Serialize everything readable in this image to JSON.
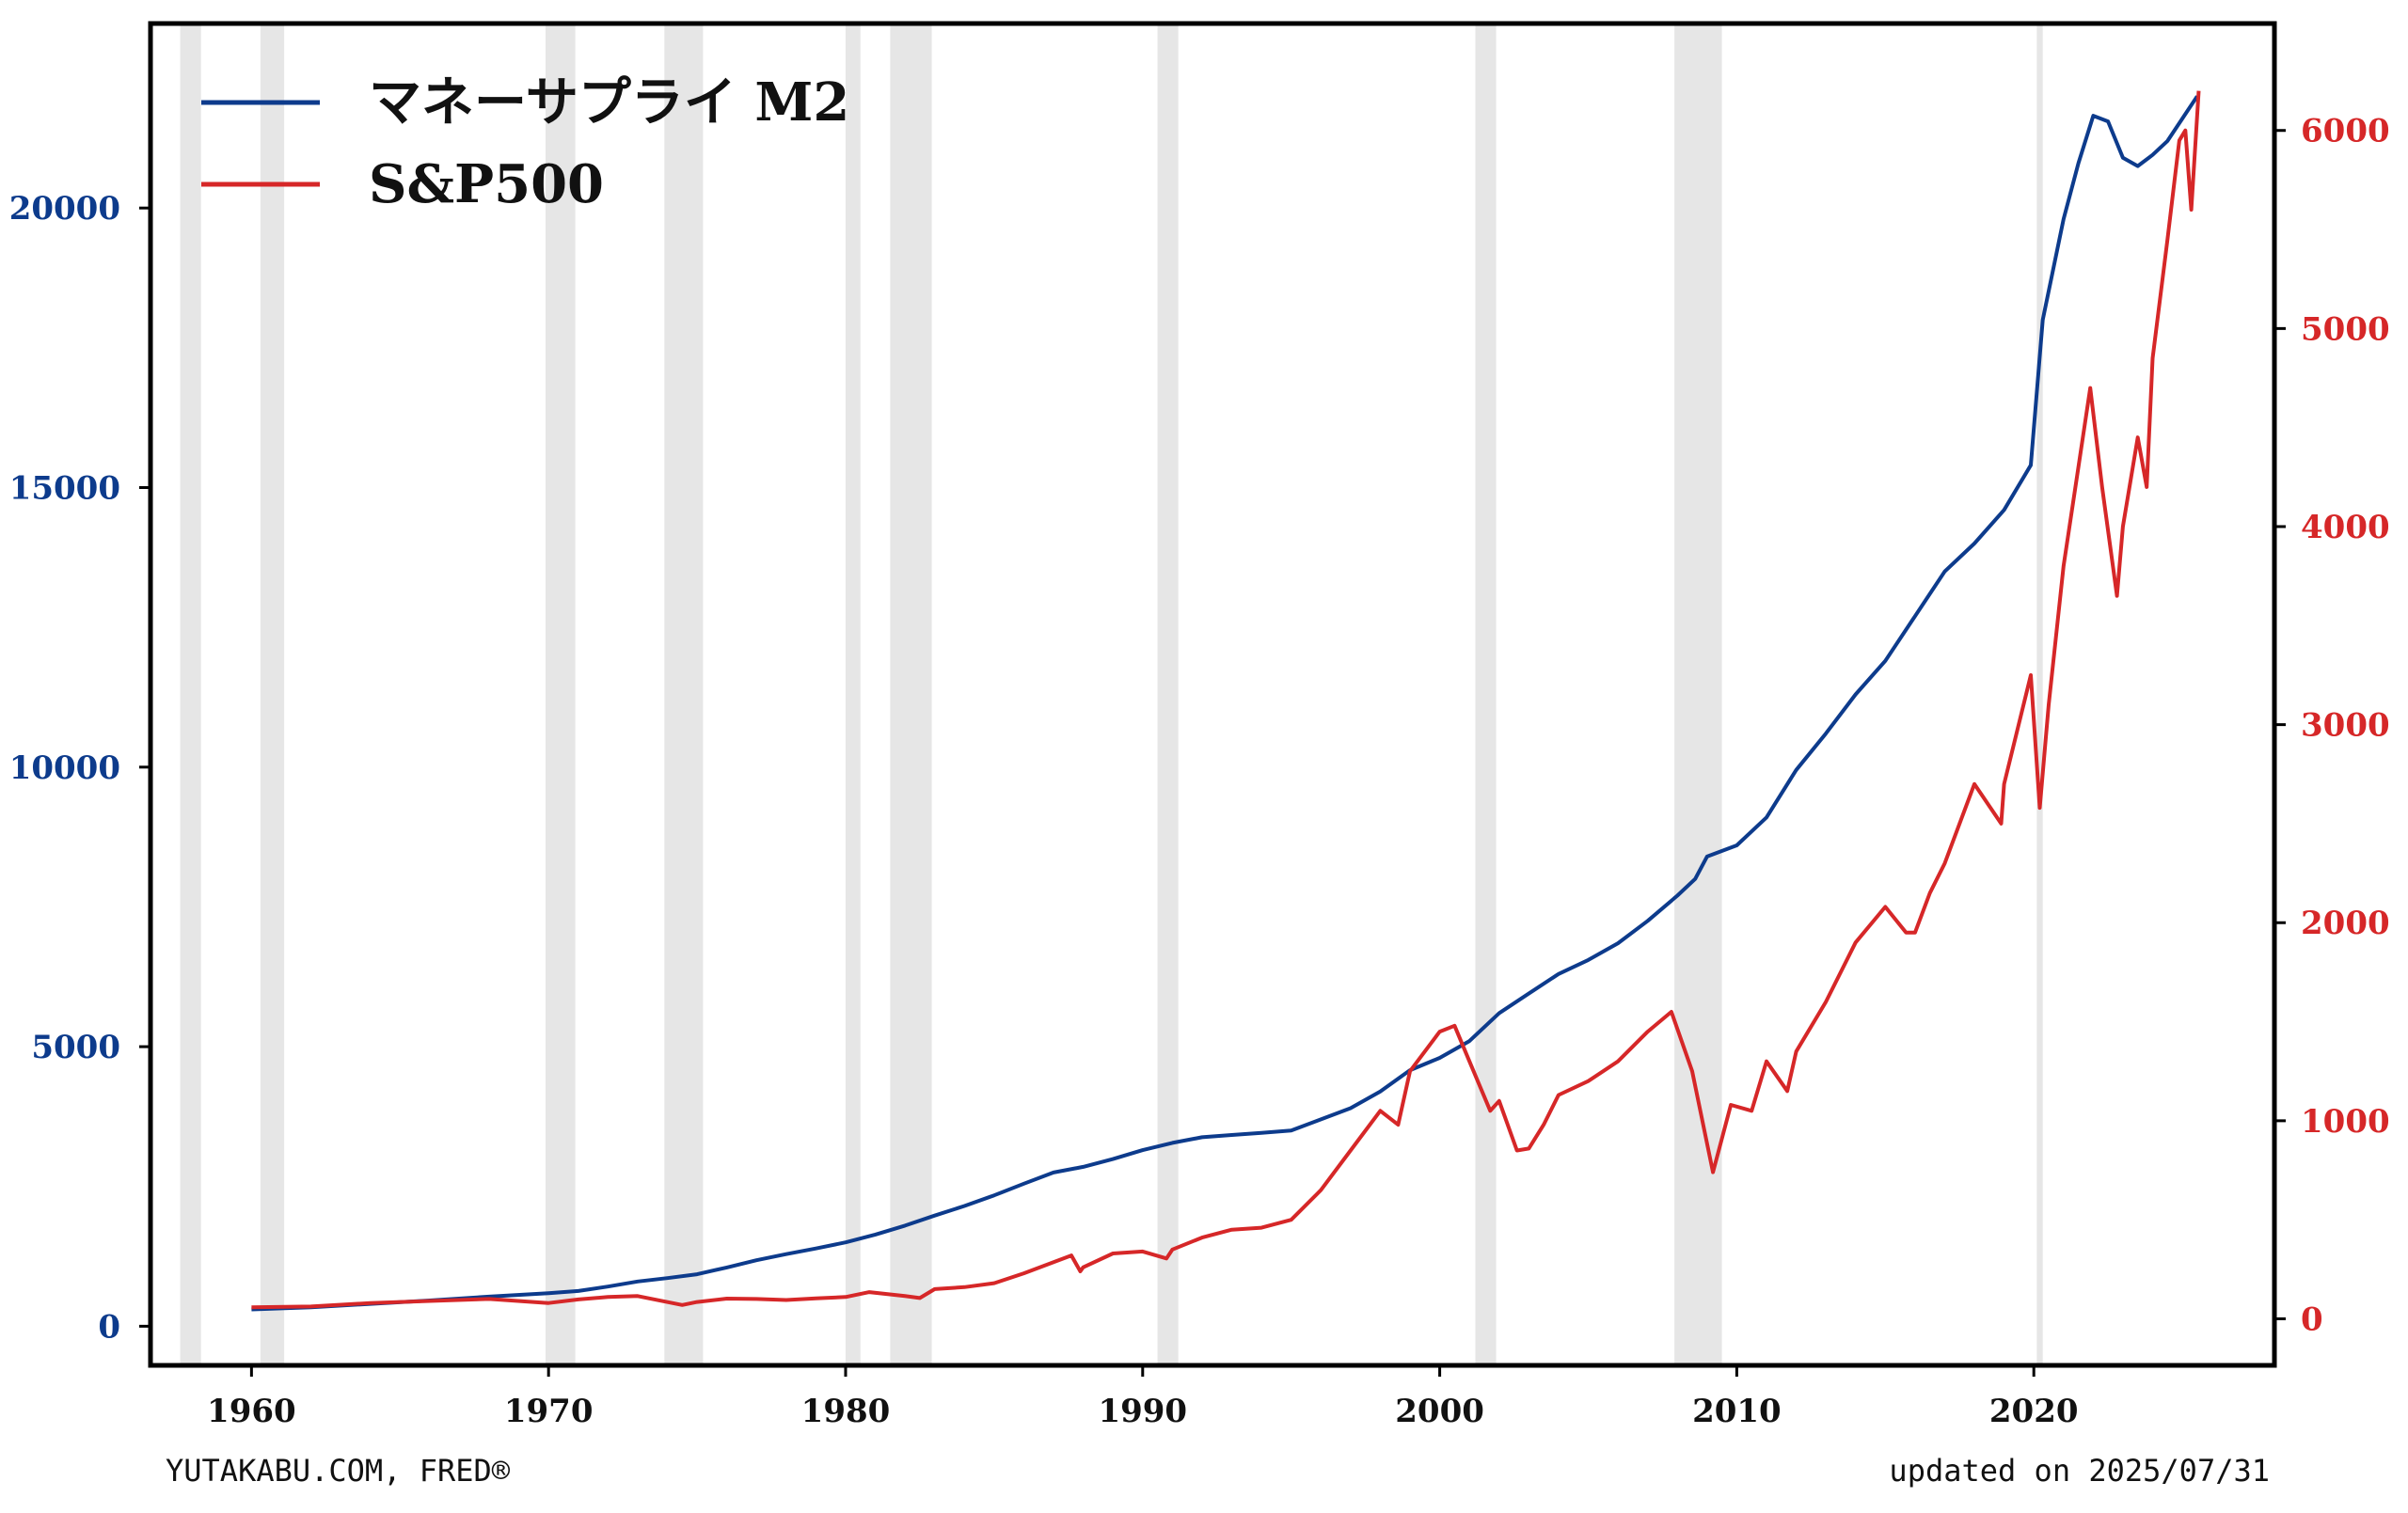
{
  "chart_data": {
    "type": "line",
    "xlim": [
      1956.6,
      2028.1
    ],
    "x_ticks": [
      1960,
      1970,
      1980,
      1990,
      2000,
      2010,
      2020
    ],
    "left_axis": {
      "ylim": [
        -700,
        23300
      ],
      "ticks": [
        0,
        5000,
        10000,
        15000,
        20000
      ],
      "color": "#0d3b8c"
    },
    "right_axis": {
      "ylim": [
        -235,
        6540
      ],
      "ticks": [
        0,
        1000,
        2000,
        3000,
        4000,
        5000,
        6000
      ],
      "color": "#d62728"
    },
    "recessions": [
      [
        1957.6,
        1958.3
      ],
      [
        1960.3,
        1961.1
      ],
      [
        1969.9,
        1970.9
      ],
      [
        1973.9,
        1975.2
      ],
      [
        1980.0,
        1980.5
      ],
      [
        1981.5,
        1982.9
      ],
      [
        1990.5,
        1991.2
      ],
      [
        2001.2,
        2001.9
      ],
      [
        2007.9,
        2009.5
      ],
      [
        2020.1,
        2020.3
      ]
    ],
    "series": [
      {
        "name": "マネーサプライ M2",
        "axis": "left",
        "color": "#0d3b8c",
        "points": [
          [
            1960.0,
            300
          ],
          [
            1962.0,
            340
          ],
          [
            1964.0,
            400
          ],
          [
            1966.0,
            460
          ],
          [
            1968.0,
            530
          ],
          [
            1970.0,
            590
          ],
          [
            1971.0,
            630
          ],
          [
            1972.0,
            710
          ],
          [
            1973.0,
            800
          ],
          [
            1974.0,
            860
          ],
          [
            1975.0,
            930
          ],
          [
            1976.0,
            1050
          ],
          [
            1977.0,
            1180
          ],
          [
            1978.0,
            1290
          ],
          [
            1979.0,
            1390
          ],
          [
            1980.0,
            1500
          ],
          [
            1981.0,
            1640
          ],
          [
            1982.0,
            1800
          ],
          [
            1983.0,
            1980
          ],
          [
            1984.0,
            2150
          ],
          [
            1985.0,
            2340
          ],
          [
            1986.0,
            2550
          ],
          [
            1987.0,
            2750
          ],
          [
            1988.0,
            2850
          ],
          [
            1989.0,
            2990
          ],
          [
            1990.0,
            3150
          ],
          [
            1991.0,
            3280
          ],
          [
            1992.0,
            3380
          ],
          [
            1993.0,
            3420
          ],
          [
            1994.0,
            3460
          ],
          [
            1995.0,
            3500
          ],
          [
            1996.0,
            3700
          ],
          [
            1997.0,
            3900
          ],
          [
            1998.0,
            4200
          ],
          [
            1999.0,
            4580
          ],
          [
            2000.0,
            4800
          ],
          [
            2001.0,
            5100
          ],
          [
            2002.0,
            5600
          ],
          [
            2003.0,
            5950
          ],
          [
            2004.0,
            6300
          ],
          [
            2005.0,
            6550
          ],
          [
            2006.0,
            6850
          ],
          [
            2007.0,
            7250
          ],
          [
            2008.0,
            7700
          ],
          [
            2008.6,
            8000
          ],
          [
            2009.0,
            8400
          ],
          [
            2010.0,
            8600
          ],
          [
            2011.0,
            9100
          ],
          [
            2012.0,
            9950
          ],
          [
            2013.0,
            10600
          ],
          [
            2014.0,
            11300
          ],
          [
            2015.0,
            11900
          ],
          [
            2016.0,
            12700
          ],
          [
            2017.0,
            13500
          ],
          [
            2018.0,
            14000
          ],
          [
            2019.0,
            14600
          ],
          [
            2019.9,
            15400
          ],
          [
            2020.3,
            18000
          ],
          [
            2021.0,
            19800
          ],
          [
            2021.5,
            20800
          ],
          [
            2022.0,
            21650
          ],
          [
            2022.5,
            21550
          ],
          [
            2023.0,
            20900
          ],
          [
            2023.5,
            20750
          ],
          [
            2024.0,
            20950
          ],
          [
            2024.5,
            21200
          ],
          [
            2025.0,
            21600
          ],
          [
            2025.5,
            22000
          ]
        ]
      },
      {
        "name": "S&P500",
        "axis": "right",
        "color": "#d62728",
        "points": [
          [
            1960.0,
            58
          ],
          [
            1962.0,
            62
          ],
          [
            1964.0,
            80
          ],
          [
            1966.0,
            90
          ],
          [
            1968.0,
            100
          ],
          [
            1970.0,
            80
          ],
          [
            1971.0,
            98
          ],
          [
            1972.0,
            110
          ],
          [
            1973.0,
            115
          ],
          [
            1974.5,
            70
          ],
          [
            1975.0,
            85
          ],
          [
            1976.0,
            102
          ],
          [
            1977.0,
            100
          ],
          [
            1978.0,
            95
          ],
          [
            1979.0,
            103
          ],
          [
            1980.0,
            110
          ],
          [
            1980.8,
            135
          ],
          [
            1982.0,
            115
          ],
          [
            1982.5,
            105
          ],
          [
            1983.0,
            150
          ],
          [
            1984.0,
            160
          ],
          [
            1985.0,
            180
          ],
          [
            1986.0,
            230
          ],
          [
            1987.6,
            320
          ],
          [
            1987.9,
            240
          ],
          [
            1988.0,
            260
          ],
          [
            1989.0,
            330
          ],
          [
            1990.0,
            340
          ],
          [
            1990.8,
            305
          ],
          [
            1991.0,
            350
          ],
          [
            1992.0,
            410
          ],
          [
            1993.0,
            450
          ],
          [
            1994.0,
            460
          ],
          [
            1995.0,
            500
          ],
          [
            1996.0,
            650
          ],
          [
            1997.0,
            850
          ],
          [
            1998.0,
            1050
          ],
          [
            1998.6,
            980
          ],
          [
            1999.0,
            1250
          ],
          [
            2000.0,
            1450
          ],
          [
            2000.5,
            1480
          ],
          [
            2001.0,
            1300
          ],
          [
            2001.7,
            1050
          ],
          [
            2002.0,
            1100
          ],
          [
            2002.6,
            850
          ],
          [
            2003.0,
            860
          ],
          [
            2003.5,
            980
          ],
          [
            2004.0,
            1130
          ],
          [
            2005.0,
            1200
          ],
          [
            2006.0,
            1300
          ],
          [
            2007.0,
            1450
          ],
          [
            2007.8,
            1550
          ],
          [
            2008.5,
            1250
          ],
          [
            2009.2,
            740
          ],
          [
            2009.8,
            1080
          ],
          [
            2010.5,
            1050
          ],
          [
            2011.0,
            1300
          ],
          [
            2011.7,
            1150
          ],
          [
            2012.0,
            1350
          ],
          [
            2013.0,
            1600
          ],
          [
            2014.0,
            1900
          ],
          [
            2015.0,
            2080
          ],
          [
            2015.7,
            1950
          ],
          [
            2016.0,
            1950
          ],
          [
            2016.5,
            2150
          ],
          [
            2017.0,
            2300
          ],
          [
            2018.0,
            2700
          ],
          [
            2018.9,
            2500
          ],
          [
            2019.0,
            2700
          ],
          [
            2019.9,
            3250
          ],
          [
            2020.2,
            2580
          ],
          [
            2020.5,
            3100
          ],
          [
            2021.0,
            3800
          ],
          [
            2021.5,
            4300
          ],
          [
            2021.9,
            4700
          ],
          [
            2022.3,
            4200
          ],
          [
            2022.8,
            3650
          ],
          [
            2023.0,
            4000
          ],
          [
            2023.5,
            4450
          ],
          [
            2023.8,
            4200
          ],
          [
            2024.0,
            4850
          ],
          [
            2024.5,
            5450
          ],
          [
            2024.9,
            5950
          ],
          [
            2025.1,
            6000
          ],
          [
            2025.3,
            5600
          ],
          [
            2025.55,
            6200
          ]
        ]
      }
    ]
  },
  "legend": {
    "items": [
      "マネーサプライ M2",
      "S&P500"
    ]
  },
  "footer": {
    "source": "YUTAKABU.COM, FRED®",
    "updated": "updated on 2025/07/31"
  }
}
